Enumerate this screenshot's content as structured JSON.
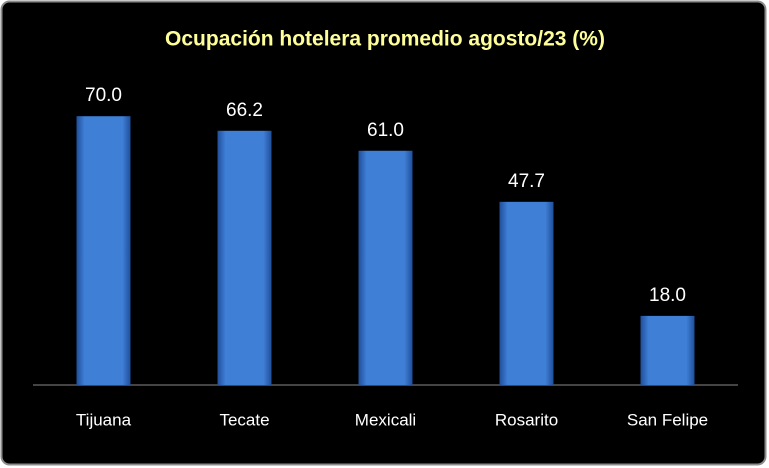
{
  "chart_data": {
    "type": "bar",
    "title": "Ocupación hotelera promedio agosto/23 (%)",
    "categories": [
      "Tijuana",
      "Tecate",
      "Mexicali",
      "Rosarito",
      "San Felipe"
    ],
    "values": [
      70.0,
      66.2,
      61.0,
      47.7,
      18.0
    ],
    "value_labels": [
      "70.0",
      "66.2",
      "61.0",
      "47.7",
      "18.0"
    ],
    "color": "#3f7fd6"
  }
}
